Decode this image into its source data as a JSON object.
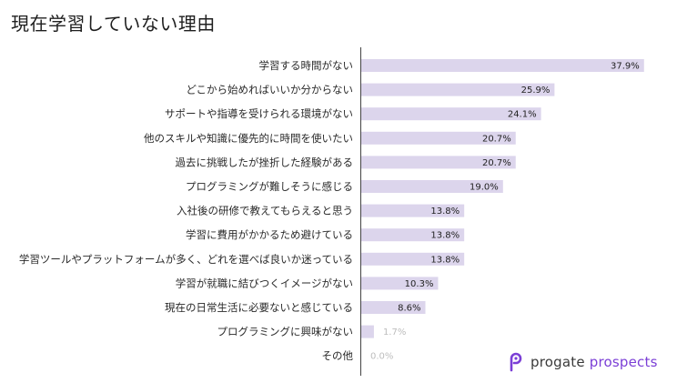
{
  "title": "現在学習していない理由",
  "brand": {
    "word1": "progate",
    "word2": "prospects",
    "accent_color": "#7b3fd6",
    "icon": "progate-logo-icon"
  },
  "chart_data": {
    "type": "bar",
    "orientation": "horizontal",
    "title": "現在学習していない理由",
    "unit": "%",
    "bar_color": "#dcd5ec",
    "xlim": [
      0,
      40
    ],
    "categories": [
      "学習する時間がない",
      "どこから始めればいいか分からない",
      "サポートや指導を受けられる環境がない",
      "他のスキルや知識に優先的に時間を使いたい",
      "過去に挑戦したが挫折した経験がある",
      "プログラミングが難しそうに感じる",
      "入社後の研修で教えてもらえると思う",
      "学習に費用がかかるため避けている",
      "学習ツールやプラットフォームが多く、どれを選べば良いか迷っている",
      "学習が就職に結びつくイメージがない",
      "現在の日常生活に必要ないと感じている",
      "プログラミングに興味がない",
      "その他"
    ],
    "values": [
      37.9,
      25.9,
      24.1,
      20.7,
      20.7,
      19.0,
      13.8,
      13.8,
      13.8,
      10.3,
      8.6,
      1.7,
      0.0
    ],
    "value_labels": [
      "37.9%",
      "25.9%",
      "24.1%",
      "20.7%",
      "20.7%",
      "19.0%",
      "13.8%",
      "13.8%",
      "13.8%",
      "10.3%",
      "8.6%",
      "1.7%",
      "0.0%"
    ]
  }
}
